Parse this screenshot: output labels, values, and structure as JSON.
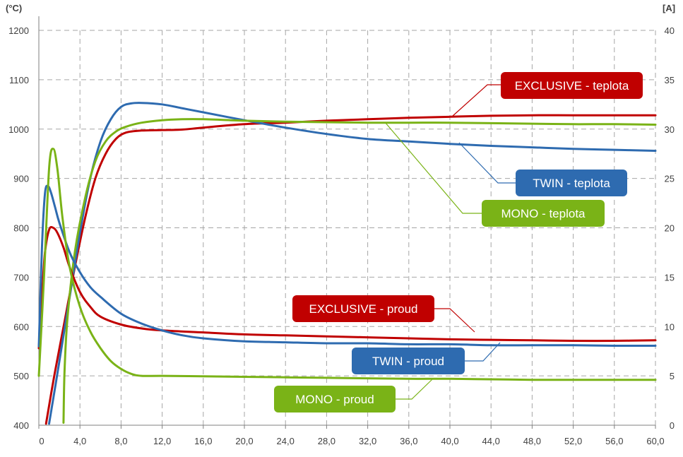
{
  "chart_data": {
    "type": "line",
    "title": "",
    "x_axis": {
      "label": "",
      "range": [
        0,
        60
      ],
      "ticks": [
        "0",
        "4,0",
        "8,0",
        "12,0",
        "16,0",
        "20,0",
        "24,0",
        "28,0",
        "32,0",
        "36,0",
        "40,0",
        "44,0",
        "48,0",
        "52,0",
        "56,0",
        "60,0"
      ]
    },
    "y_axis_left": {
      "unit": "(°C)",
      "range": [
        400,
        1200
      ],
      "ticks": [
        "400",
        "500",
        "600",
        "700",
        "800",
        "900",
        "1000",
        "1100",
        "1200"
      ]
    },
    "y_axis_right": {
      "unit": "[A]",
      "range": [
        0,
        40
      ],
      "ticks": [
        "0",
        "5",
        "10",
        "15",
        "20",
        "25",
        "30",
        "35",
        "40"
      ]
    },
    "grid": true,
    "series": [
      {
        "name": "EXCLUSIVE - teplota",
        "axis": "left",
        "color": "#c00000",
        "x": [
          0.7,
          1.5,
          2.5,
          3.5,
          4.5,
          5.5,
          6.5,
          7.5,
          8.5,
          10,
          12,
          14,
          16,
          20,
          24,
          28,
          32,
          36,
          40,
          44,
          48,
          52,
          56,
          60
        ],
        "y": [
          403,
          500,
          610,
          720,
          820,
          900,
          950,
          980,
          993,
          997,
          998,
          999,
          1003,
          1010,
          1013,
          1017,
          1020,
          1023,
          1025,
          1027,
          1028,
          1028,
          1028,
          1028
        ]
      },
      {
        "name": "TWIN - teplota",
        "axis": "left",
        "color": "#2e6bb0",
        "x": [
          1.0,
          2.0,
          3.0,
          4.0,
          5.0,
          6.0,
          7.0,
          8.0,
          9.0,
          10,
          12,
          14,
          16,
          20,
          24,
          28,
          32,
          36,
          40,
          44,
          48,
          52,
          56,
          60
        ],
        "y": [
          403,
          530,
          660,
          790,
          900,
          975,
          1020,
          1045,
          1052,
          1053,
          1050,
          1042,
          1034,
          1018,
          1003,
          990,
          980,
          975,
          970,
          966,
          963,
          960,
          958,
          956
        ]
      },
      {
        "name": "MONO - teplota",
        "axis": "left",
        "color": "#7ab317",
        "x": [
          2.4,
          2.5,
          2.8,
          3.5,
          4.5,
          5.5,
          6.5,
          7.5,
          8.5,
          10,
          12,
          14,
          16,
          20,
          24,
          28,
          32,
          36,
          40,
          44,
          48,
          52,
          56,
          60
        ],
        "y": [
          405,
          510,
          620,
          750,
          860,
          935,
          975,
          995,
          1005,
          1013,
          1018,
          1020,
          1020,
          1017,
          1015,
          1014,
          1013,
          1013,
          1013,
          1012,
          1011,
          1010,
          1010,
          1009
        ]
      },
      {
        "name": "EXCLUSIVE - proud",
        "axis": "right",
        "color": "#c00000",
        "x": [
          0,
          0.3,
          0.6,
          1.0,
          1.4,
          1.8,
          2.4,
          3.0,
          4.0,
          5.0,
          6.0,
          8.0,
          10,
          12,
          16,
          20,
          24,
          28,
          32,
          36,
          40,
          44,
          48,
          52,
          56,
          60
        ],
        "y": [
          7.8,
          13.0,
          17.5,
          19.8,
          20.0,
          19.5,
          18.0,
          16.0,
          13.5,
          12.0,
          11.0,
          10.2,
          9.8,
          9.6,
          9.4,
          9.2,
          9.1,
          9.0,
          8.9,
          8.8,
          8.7,
          8.65,
          8.6,
          8.55,
          8.55,
          8.6
        ]
      },
      {
        "name": "TWIN - proud",
        "axis": "right",
        "color": "#2e6bb0",
        "x": [
          0,
          0.3,
          0.6,
          0.9,
          1.2,
          1.6,
          2.0,
          3.0,
          4.0,
          5.0,
          6.0,
          8.0,
          10,
          12,
          14,
          16,
          20,
          24,
          28,
          32,
          36,
          40,
          44,
          48,
          52,
          56,
          60
        ],
        "y": [
          8.0,
          18.0,
          23.5,
          24.2,
          23.5,
          22.0,
          20.5,
          17.5,
          15.5,
          14.0,
          13.0,
          11.3,
          10.3,
          9.6,
          9.1,
          8.8,
          8.5,
          8.4,
          8.3,
          8.3,
          8.2,
          8.2,
          8.1,
          8.1,
          8.1,
          8.05,
          8.05
        ]
      },
      {
        "name": "MONO - proud",
        "axis": "right",
        "color": "#7ab317",
        "x": [
          0,
          0.5,
          1.0,
          1.4,
          1.8,
          2.3,
          3.0,
          4.0,
          5.0,
          6.0,
          7.0,
          8.0,
          9.0,
          10,
          12,
          16,
          20,
          24,
          28,
          32,
          36,
          40,
          44,
          48,
          52,
          56,
          60
        ],
        "y": [
          5.0,
          15.0,
          26.0,
          28.0,
          26.0,
          21.0,
          16.0,
          12.0,
          9.5,
          7.8,
          6.5,
          5.7,
          5.2,
          5.0,
          5.0,
          4.95,
          4.9,
          4.85,
          4.8,
          4.75,
          4.7,
          4.7,
          4.65,
          4.6,
          4.6,
          4.6,
          4.6
        ]
      }
    ],
    "callouts": [
      {
        "text": "EXCLUSIVE - teplota",
        "color": "#c00000"
      },
      {
        "text": "TWIN - teplota",
        "color": "#2e6bb0"
      },
      {
        "text": "MONO - teplota",
        "color": "#7ab317"
      },
      {
        "text": "EXCLUSIVE - proud",
        "color": "#c00000"
      },
      {
        "text": "TWIN - proud",
        "color": "#2e6bb0"
      },
      {
        "text": "MONO - proud",
        "color": "#7ab317"
      }
    ]
  }
}
